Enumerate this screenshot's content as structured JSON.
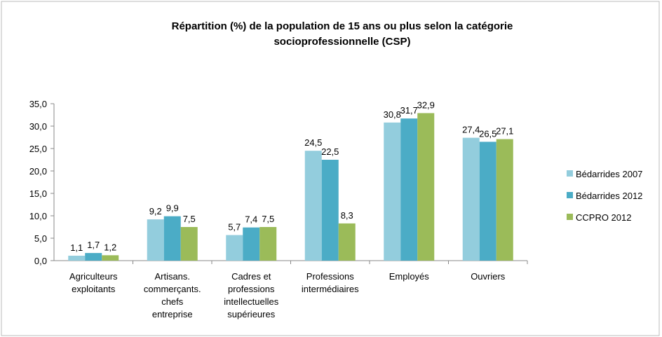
{
  "chart_data": {
    "type": "bar",
    "title": "Répartition (%) de la population de 15 ans ou plus selon la catégorie\nsocioprofessionnelle (CSP)",
    "categories": [
      "Agriculteurs\nexploitants",
      "Artisans.\ncommerçants.\nchefs\nentreprise",
      "Cadres et\nprofessions\nintellectuelles\nsupérieures",
      "Professions\nintermédiaires",
      "Employés",
      "Ouvriers"
    ],
    "series": [
      {
        "name": "Bédarrides 2007",
        "color": "#93cddd",
        "values": [
          1.1,
          9.2,
          5.7,
          24.5,
          30.8,
          27.4
        ],
        "value_labels": [
          "1,1",
          "9,2",
          "5,7",
          "24,5",
          "30,8",
          "27,4"
        ]
      },
      {
        "name": "Bédarrides 2012",
        "color": "#4bacc6",
        "values": [
          1.7,
          9.9,
          7.4,
          22.5,
          31.7,
          26.5
        ],
        "value_labels": [
          "1,7",
          "9,9",
          "7,4",
          "22,5",
          "31,7",
          "26,5"
        ]
      },
      {
        "name": "CCPRO 2012",
        "color": "#9bbb59",
        "values": [
          1.2,
          7.5,
          7.5,
          8.3,
          32.9,
          27.1
        ],
        "value_labels": [
          "1,2",
          "7,5",
          "7,5",
          "8,3",
          "32,9",
          "27,1"
        ]
      }
    ],
    "ylim": [
      0,
      35
    ],
    "yticks": [
      {
        "value": 0,
        "label": "0,0"
      },
      {
        "value": 5,
        "label": "5,0"
      },
      {
        "value": 10,
        "label": "10,0"
      },
      {
        "value": 15,
        "label": "15,0"
      },
      {
        "value": 20,
        "label": "20,0"
      },
      {
        "value": 25,
        "label": "25,0"
      },
      {
        "value": 30,
        "label": "30,0"
      },
      {
        "value": 35,
        "label": "35,0"
      }
    ],
    "grid": false,
    "legend": "right"
  }
}
